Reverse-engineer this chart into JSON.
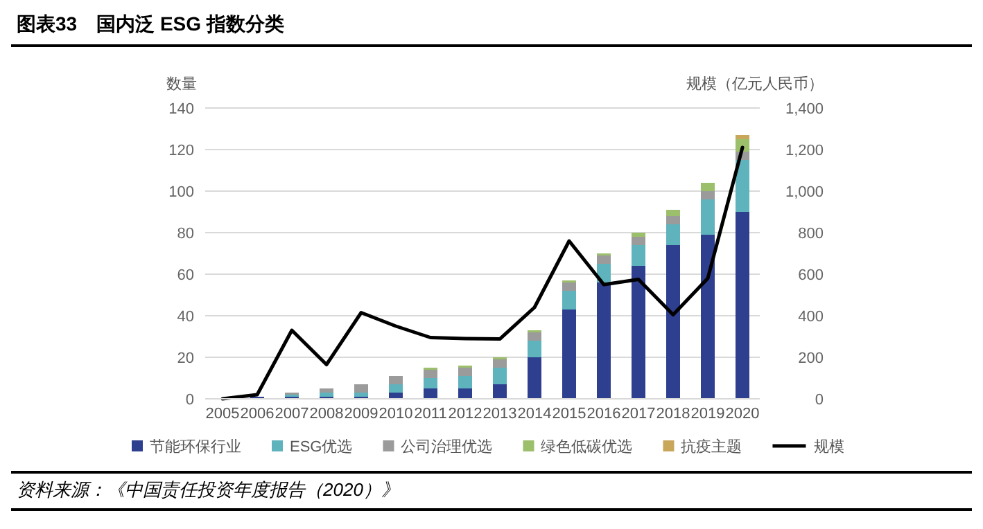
{
  "chart_data": {
    "type": "bar",
    "stacked": true,
    "title": "图表33　国内泛 ESG 指数分类",
    "ylabel": "数量",
    "y2label": "规模（亿元人民币）",
    "categories": [
      "2005",
      "2006",
      "2007",
      "2008",
      "2009",
      "2010",
      "2011",
      "2012",
      "2013",
      "2014",
      "2015",
      "2016",
      "2017",
      "2018",
      "2019",
      "2020"
    ],
    "series": [
      {
        "name": "节能环保行业",
        "color": "#2e3f8f",
        "values": [
          0,
          1,
          1,
          1,
          1,
          3,
          5,
          5,
          7,
          20,
          43,
          56,
          64,
          74,
          79,
          90
        ]
      },
      {
        "name": "ESG优选",
        "color": "#5fb3bd",
        "values": [
          0,
          null,
          1,
          2,
          2,
          4,
          5,
          6,
          8,
          8,
          9,
          9,
          10,
          10,
          17,
          25
        ]
      },
      {
        "name": "公司治理优选",
        "color": "#9b9b9b",
        "values": [
          0,
          0,
          1,
          2,
          4,
          4,
          4,
          4,
          4,
          4,
          4,
          4,
          4,
          4,
          4,
          4
        ]
      },
      {
        "name": "绿色低碳优选",
        "color": "#9cbf6b",
        "values": [
          0,
          0,
          0,
          0,
          0,
          0,
          1,
          1,
          1,
          1,
          1,
          1,
          2,
          3,
          4,
          6
        ]
      },
      {
        "name": "抗疫主题",
        "color": "#c9a75a",
        "values": [
          0,
          0,
          0,
          0,
          0,
          0,
          0,
          0,
          0,
          0,
          0,
          0,
          0,
          0,
          0,
          2
        ]
      },
      {
        "name": "规模",
        "type": "line",
        "axis": "y2",
        "color": "#000000",
        "values": [
          0,
          20,
          330,
          165,
          415,
          350,
          295,
          290,
          288,
          440,
          760,
          550,
          575,
          405,
          580,
          1210
        ]
      }
    ],
    "ylim": [
      0,
      140
    ],
    "yticks": [
      0,
      20,
      40,
      60,
      80,
      100,
      120,
      140
    ],
    "y2lim": [
      0,
      1400
    ],
    "y2ticks": [
      0,
      {
        "value": 200,
        "label": "200"
      },
      {
        "value": 400,
        "label": "400"
      },
      {
        "value": 600,
        "label": "600"
      },
      {
        "value": 800,
        "label": "800"
      },
      {
        "value": 1000,
        "label": "1,000"
      },
      {
        "value": 1200,
        "label": "1,200"
      },
      {
        "value": 1400,
        "label": "1,400"
      }
    ],
    "grid": "y",
    "legend": "bottom",
    "annotations": [
      "资料来源：《中国责任投资年度报告（2020）》"
    ]
  }
}
